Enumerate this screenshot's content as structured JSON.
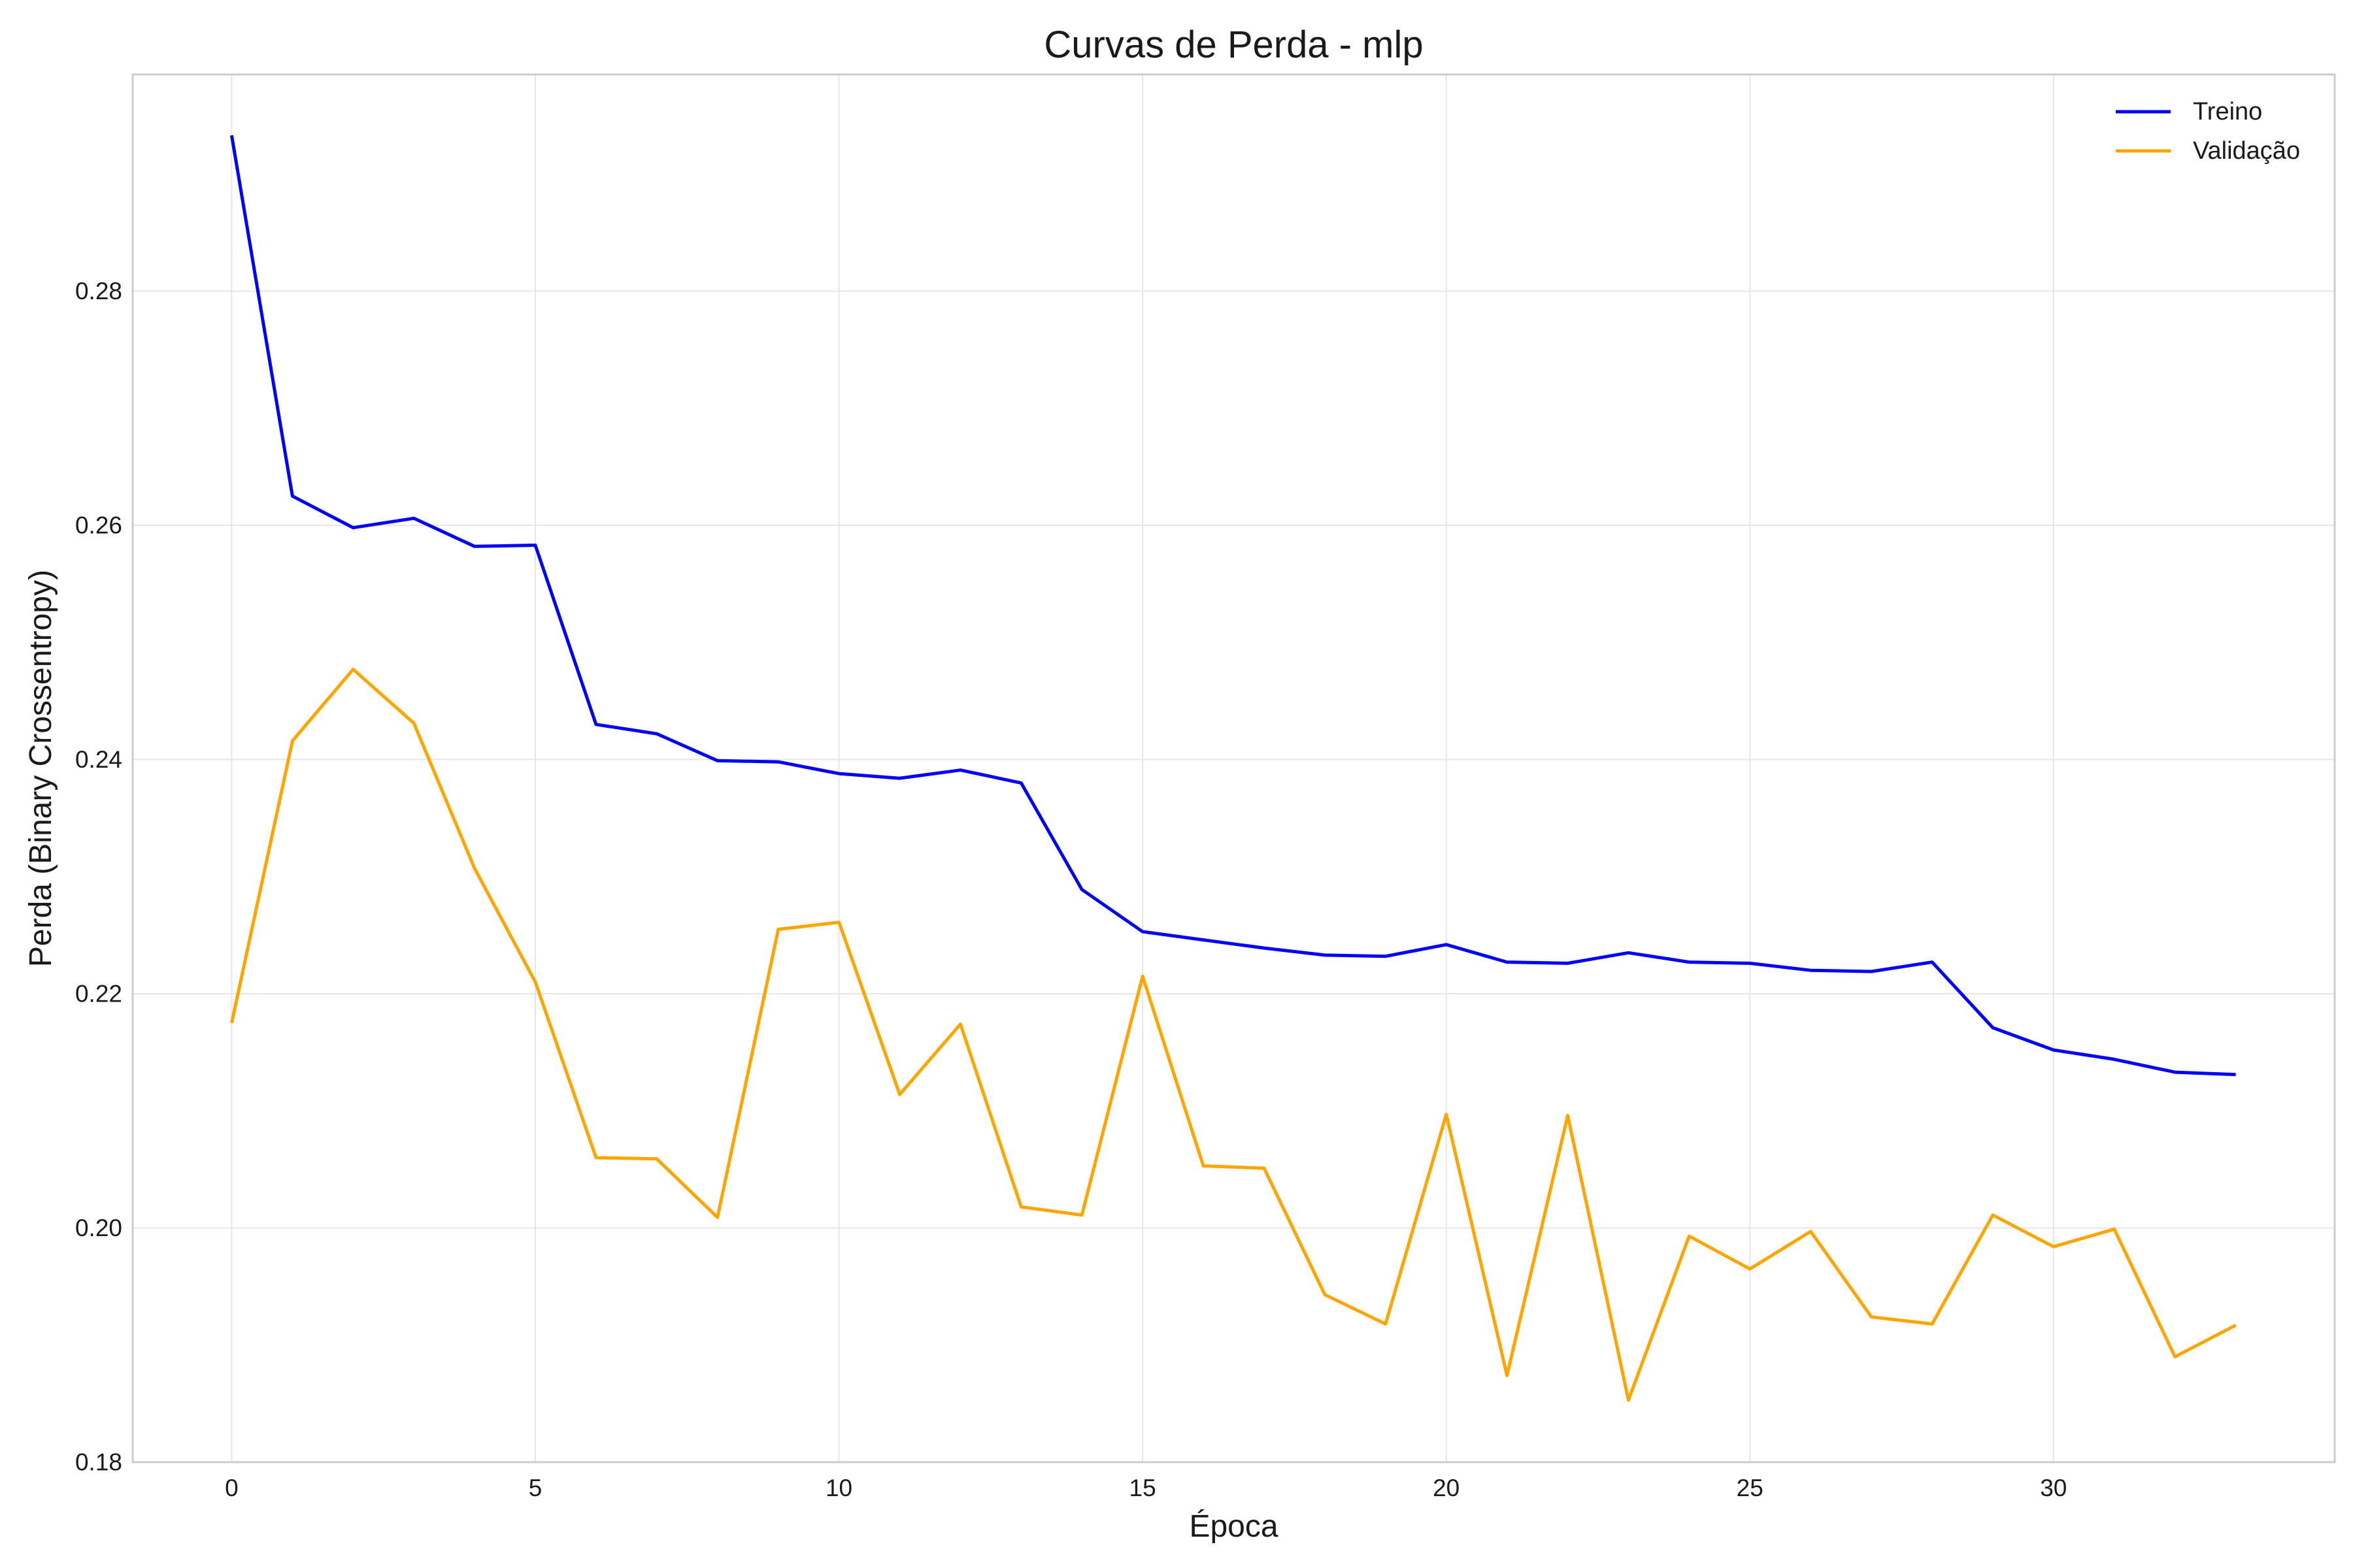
{
  "chart_data": {
    "type": "line",
    "title": "Curvas de Perda - mlp",
    "xlabel": "Época",
    "ylabel": "Perda (Binary Crossentropy)",
    "xlim": [
      -1.63,
      34.63
    ],
    "ylim": [
      0.18,
      0.2985
    ],
    "xticks": [
      0,
      5,
      10,
      15,
      20,
      25,
      30
    ],
    "xtick_labels": [
      "0",
      "5",
      "10",
      "15",
      "20",
      "25",
      "30"
    ],
    "yticks": [
      0.18,
      0.2,
      0.22,
      0.24,
      0.26,
      0.28
    ],
    "ytick_labels": [
      "0.18",
      "0.20",
      "0.22",
      "0.24",
      "0.26",
      "0.28"
    ],
    "grid": true,
    "legend_position": "top-right",
    "x": [
      0,
      1,
      2,
      3,
      4,
      5,
      6,
      7,
      8,
      9,
      10,
      11,
      12,
      13,
      14,
      15,
      16,
      17,
      18,
      19,
      20,
      21,
      22,
      23,
      24,
      25,
      26,
      27,
      28,
      29,
      30,
      31,
      32,
      33
    ],
    "series": [
      {
        "name": "Treino",
        "color": "#0000ff",
        "values": [
          0.2933,
          0.2625,
          0.2598,
          0.2606,
          0.2582,
          0.2583,
          0.243,
          0.2422,
          0.2399,
          0.2398,
          0.2388,
          0.2384,
          0.2391,
          0.238,
          0.2289,
          0.2253,
          0.2246,
          0.2239,
          0.2233,
          0.2232,
          0.2242,
          0.2227,
          0.2226,
          0.2235,
          0.2227,
          0.2226,
          0.222,
          0.2219,
          0.2227,
          0.2171,
          0.2152,
          0.2144,
          0.2133,
          0.2131
        ]
      },
      {
        "name": "Validação",
        "color": "#ffa500",
        "values": [
          0.2175,
          0.2416,
          0.2477,
          0.2431,
          0.2307,
          0.221,
          0.206,
          0.2059,
          0.2009,
          0.2255,
          0.2261,
          0.2114,
          0.2174,
          0.2018,
          0.2011,
          0.2215,
          0.2053,
          0.2051,
          0.1943,
          0.1918,
          0.2097,
          0.1874,
          0.2096,
          0.1853,
          0.1993,
          0.1965,
          0.1997,
          0.1924,
          0.1918,
          0.2011,
          0.1984,
          0.1999,
          0.189,
          0.1917
        ]
      }
    ]
  }
}
